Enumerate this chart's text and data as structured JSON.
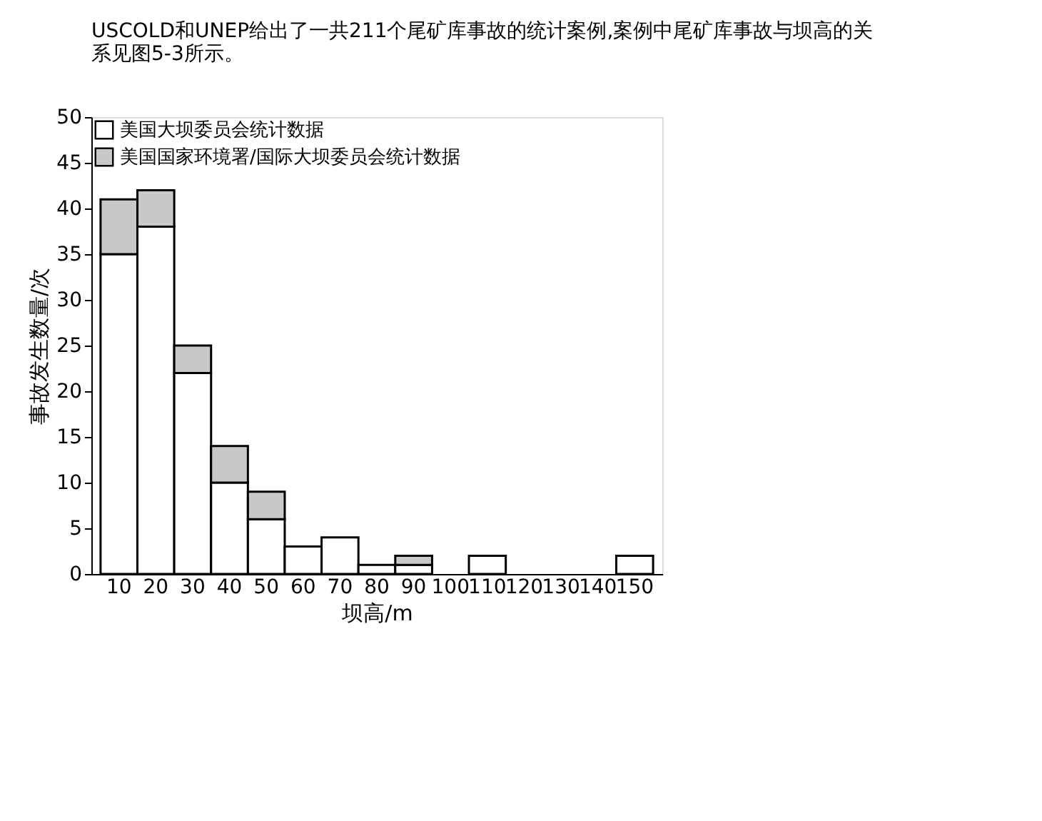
{
  "chart_data": {
    "type": "bar",
    "title": "USCOLD和UNEP给出了一共211个尾矿库事故的统计案例,案例中尾矿库事故与坝高的关系见图5-3所示。",
    "xlabel": "坝高/m",
    "ylabel": "事故发生数量/次",
    "categories": [
      "10",
      "20",
      "30",
      "40",
      "50",
      "60",
      "70",
      "80",
      "90",
      "100",
      "110",
      "120",
      "130",
      "140",
      "150"
    ],
    "stacked": true,
    "series": [
      {
        "name": "美国大坝委员会统计数据",
        "color": "#ffffff",
        "values": [
          35,
          38,
          22,
          10,
          6,
          3,
          4,
          1,
          1,
          0,
          2,
          0,
          0,
          0,
          2
        ]
      },
      {
        "name": "美国国家环境署/国际大坝委员会统计数据",
        "color": "#c8c8c8",
        "values": [
          6,
          4,
          3,
          4,
          3,
          0,
          0,
          0,
          1,
          0,
          0,
          0,
          0,
          0,
          0
        ]
      }
    ],
    "ylim": [
      0,
      50
    ],
    "yticks": [
      0,
      5,
      10,
      15,
      20,
      25,
      30,
      35,
      40,
      45,
      50
    ],
    "grid": false,
    "legend": "top left"
  }
}
